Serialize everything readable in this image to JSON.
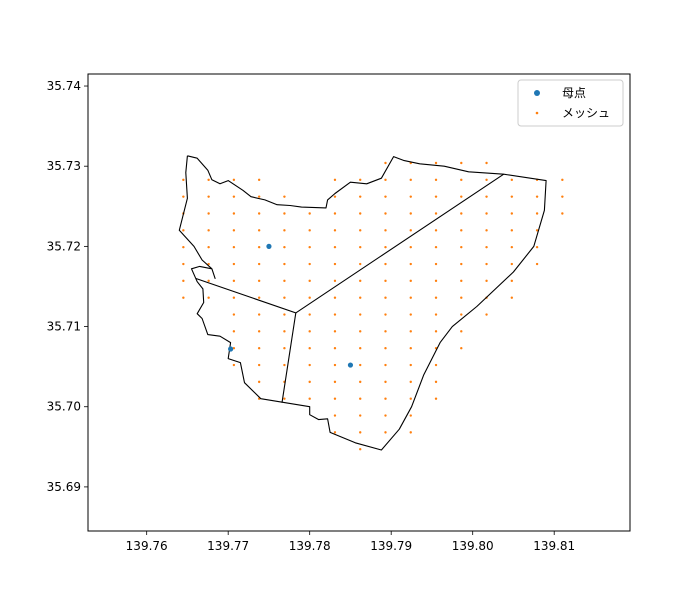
{
  "chart_data": {
    "type": "scatter",
    "title": "",
    "xlabel": "",
    "ylabel": "",
    "xlim": [
      139.7528,
      139.8193
    ],
    "ylim": [
      35.6845,
      35.7415
    ],
    "xticks": [
      139.76,
      139.77,
      139.78,
      139.79,
      139.8,
      139.81
    ],
    "yticks": [
      35.69,
      35.7,
      35.71,
      35.72,
      35.73,
      35.74
    ],
    "x_tick_labels": [
      "139.76",
      "139.77",
      "139.78",
      "139.79",
      "139.80",
      "139.81"
    ],
    "y_tick_labels": [
      "35.69",
      "35.70",
      "35.71",
      "35.72",
      "35.73",
      "35.74"
    ],
    "grid": false,
    "legend_position": "top-right",
    "legend": [
      {
        "label": "母点",
        "color": "#1f77b4",
        "marker": "dot-large"
      },
      {
        "label": "メッシュ",
        "color": "#ff7f0e",
        "marker": "dot-small"
      }
    ],
    "series": [
      {
        "name": "母点",
        "color": "#1f77b4",
        "points": [
          [
            139.775,
            35.72
          ],
          [
            139.785,
            35.7052
          ],
          [
            139.7703,
            35.7072
          ]
        ]
      },
      {
        "name": "メッシュ",
        "color": "#ff7f0e",
        "grid_spacing": [
          0.0031,
          0.0021
        ],
        "grid_origin": [
          139.7645,
          35.6947
        ],
        "columns": [
          {
            "x": 139.7645,
            "y_min": 35.7135,
            "y_max": 35.7282
          },
          {
            "x": 139.7676,
            "y_min": 35.7135,
            "y_max": 35.7282
          },
          {
            "x": 139.7707,
            "y_min": 35.7051,
            "y_max": 35.7282
          },
          {
            "x": 139.7738,
            "y_min": 35.7009,
            "y_max": 35.7282
          },
          {
            "x": 139.7769,
            "y_min": 35.7009,
            "y_max": 35.7261
          },
          {
            "x": 139.78,
            "y_min": 35.7009,
            "y_max": 35.724
          },
          {
            "x": 139.7831,
            "y_min": 35.6968,
            "y_max": 35.7282
          },
          {
            "x": 139.7862,
            "y_min": 35.6947,
            "y_max": 35.7282
          },
          {
            "x": 139.7893,
            "y_min": 35.6968,
            "y_max": 35.7303
          },
          {
            "x": 139.7924,
            "y_min": 35.6968,
            "y_max": 35.7303
          },
          {
            "x": 139.7955,
            "y_min": 35.7009,
            "y_max": 35.7303
          },
          {
            "x": 139.7986,
            "y_min": 35.7072,
            "y_max": 35.7303
          },
          {
            "x": 139.8017,
            "y_min": 35.7114,
            "y_max": 35.7303
          },
          {
            "x": 139.8048,
            "y_min": 35.7135,
            "y_max": 35.7282
          },
          {
            "x": 139.8079,
            "y_min": 35.7177,
            "y_max": 35.7282
          },
          {
            "x": 139.811,
            "y_min": 35.724,
            "y_max": 35.7282
          }
        ]
      }
    ],
    "boundary_outline": [
      [
        139.765,
        35.7313
      ],
      [
        139.7662,
        35.731
      ],
      [
        139.7675,
        35.7295
      ],
      [
        139.768,
        35.7283
      ],
      [
        139.769,
        35.7278
      ],
      [
        139.77,
        35.7282
      ],
      [
        139.7718,
        35.727
      ],
      [
        139.7728,
        35.7262
      ],
      [
        139.7745,
        35.7258
      ],
      [
        139.776,
        35.7252
      ],
      [
        139.7776,
        35.7251
      ],
      [
        139.779,
        35.7249
      ],
      [
        139.782,
        35.7248
      ],
      [
        139.7822,
        35.7258
      ],
      [
        139.7831,
        35.7266
      ],
      [
        139.785,
        35.728
      ],
      [
        139.787,
        35.7278
      ],
      [
        139.7888,
        35.7285
      ],
      [
        139.7903,
        35.7312
      ],
      [
        139.7916,
        35.7307
      ],
      [
        139.7935,
        35.7303
      ],
      [
        139.7965,
        35.73
      ],
      [
        139.7995,
        35.7293
      ],
      [
        139.8038,
        35.729
      ],
      [
        139.809,
        35.7282
      ],
      [
        139.8088,
        35.7245
      ],
      [
        139.8075,
        35.72
      ],
      [
        139.805,
        35.7168
      ],
      [
        139.8005,
        35.7125
      ],
      [
        139.7975,
        35.71
      ],
      [
        139.796,
        35.708
      ],
      [
        139.794,
        35.704
      ],
      [
        139.7925,
        35.7
      ],
      [
        139.791,
        35.6972
      ],
      [
        139.7888,
        35.6946
      ],
      [
        139.7856,
        35.6955
      ],
      [
        139.7825,
        35.6968
      ],
      [
        139.7822,
        35.6985
      ],
      [
        139.7811,
        35.6984
      ],
      [
        139.78,
        35.699
      ],
      [
        139.78,
        35.7
      ],
      [
        139.777,
        35.7005
      ],
      [
        139.774,
        35.701
      ],
      [
        139.772,
        35.703
      ],
      [
        139.7715,
        35.7055
      ],
      [
        139.77,
        35.706
      ],
      [
        139.7703,
        35.708
      ],
      [
        139.769,
        35.7088
      ],
      [
        139.7675,
        35.709
      ],
      [
        139.7668,
        35.711
      ],
      [
        139.7662,
        35.7116
      ],
      [
        139.767,
        35.713
      ],
      [
        139.7669,
        35.7147
      ],
      [
        139.7662,
        35.7156
      ],
      [
        139.7655,
        35.7172
      ],
      [
        139.7665,
        35.7175
      ],
      [
        139.768,
        35.7172
      ],
      [
        139.7684,
        35.716
      ],
      [
        139.768,
        35.7172
      ],
      [
        139.7668,
        35.7183
      ],
      [
        139.7658,
        35.72
      ],
      [
        139.764,
        35.722
      ],
      [
        139.765,
        35.726
      ],
      [
        139.7648,
        35.7292
      ],
      [
        139.765,
        35.7313
      ]
    ],
    "internal_lines": [
      [
        [
          139.766,
          35.716
        ],
        [
          139.7783,
          35.7117
        ],
        [
          139.8038,
          35.729
        ]
      ],
      [
        [
          139.7783,
          35.7117
        ],
        [
          139.7766,
          35.7005
        ]
      ]
    ]
  }
}
